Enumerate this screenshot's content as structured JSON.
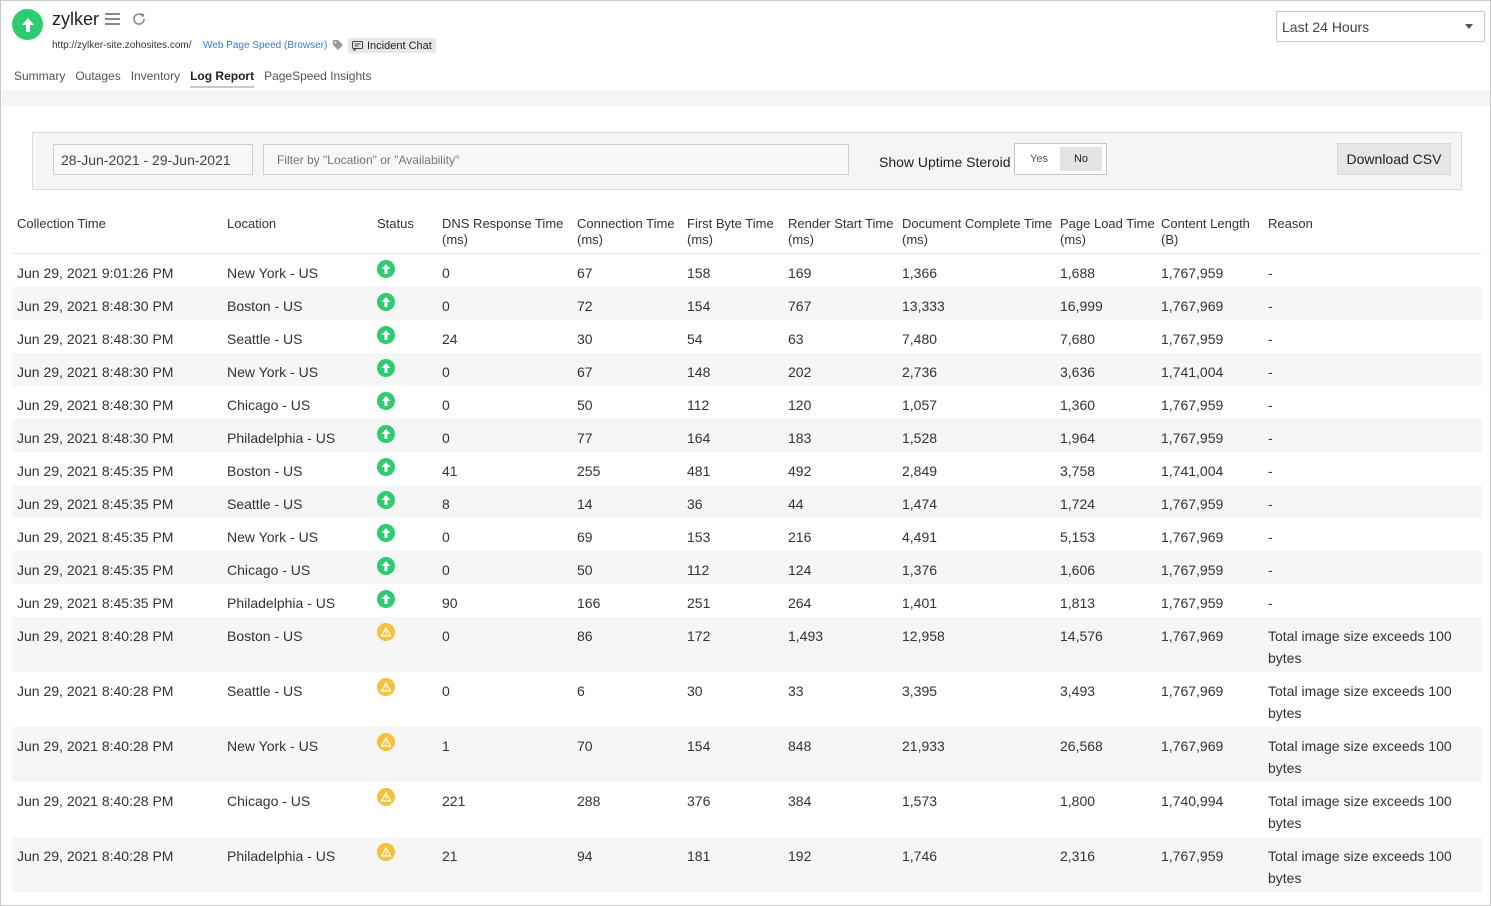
{
  "header": {
    "monitor_name": "zylker",
    "url": "http://zylker-site.zohosites.com/",
    "monitor_type": "Web Page Speed (Browser)",
    "incident_chat": "Incident Chat",
    "status_color": "#2ecc71",
    "period": "Last 24 Hours"
  },
  "tabs": [
    {
      "label": "Summary"
    },
    {
      "label": "Outages"
    },
    {
      "label": "Inventory"
    },
    {
      "label": "Log Report",
      "active": true
    },
    {
      "label": "PageSpeed Insights"
    }
  ],
  "filters": {
    "date_range": "28-Jun-2021 - 29-Jun-2021",
    "filter_placeholder": "Filter by \"Location\" or \"Availability\"",
    "steroid_label": "Show Uptime Steroid",
    "toggle_yes": "Yes",
    "toggle_no": "No",
    "toggle_selected": "No",
    "download_label": "Download CSV"
  },
  "table": {
    "columns": [
      {
        "line1": "Collection Time",
        "line2": ""
      },
      {
        "line1": "Location",
        "line2": ""
      },
      {
        "line1": "Status",
        "line2": ""
      },
      {
        "line1": "DNS Response Time",
        "line2": "(ms)"
      },
      {
        "line1": "Connection Time",
        "line2": "(ms)"
      },
      {
        "line1": "First Byte Time",
        "line2": "(ms)"
      },
      {
        "line1": "Render Start Time",
        "line2": "(ms)"
      },
      {
        "line1": "Document Complete Time",
        "line2": "(ms)"
      },
      {
        "line1": "Page Load Time",
        "line2": "(ms)"
      },
      {
        "line1": "Content Length",
        "line2": "(B)"
      },
      {
        "line1": "Reason",
        "line2": ""
      }
    ],
    "rows": [
      {
        "time": "Jun 29, 2021 9:01:26 PM",
        "location": "New York - US",
        "status": "up",
        "dns": "0",
        "conn": "67",
        "fbt": "158",
        "rst": "169",
        "dct": "1,366",
        "plt": "1,688",
        "len": "1,767,959",
        "reason": "-"
      },
      {
        "time": "Jun 29, 2021 8:48:30 PM",
        "location": "Boston - US",
        "status": "up",
        "dns": "0",
        "conn": "72",
        "fbt": "154",
        "rst": "767",
        "dct": "13,333",
        "plt": "16,999",
        "len": "1,767,969",
        "reason": "-"
      },
      {
        "time": "Jun 29, 2021 8:48:30 PM",
        "location": "Seattle - US",
        "status": "up",
        "dns": "24",
        "conn": "30",
        "fbt": "54",
        "rst": "63",
        "dct": "7,480",
        "plt": "7,680",
        "len": "1,767,959",
        "reason": "-"
      },
      {
        "time": "Jun 29, 2021 8:48:30 PM",
        "location": "New York - US",
        "status": "up",
        "dns": "0",
        "conn": "67",
        "fbt": "148",
        "rst": "202",
        "dct": "2,736",
        "plt": "3,636",
        "len": "1,741,004",
        "reason": "-"
      },
      {
        "time": "Jun 29, 2021 8:48:30 PM",
        "location": "Chicago - US",
        "status": "up",
        "dns": "0",
        "conn": "50",
        "fbt": "112",
        "rst": "120",
        "dct": "1,057",
        "plt": "1,360",
        "len": "1,767,959",
        "reason": "-"
      },
      {
        "time": "Jun 29, 2021 8:48:30 PM",
        "location": "Philadelphia - US",
        "status": "up",
        "dns": "0",
        "conn": "77",
        "fbt": "164",
        "rst": "183",
        "dct": "1,528",
        "plt": "1,964",
        "len": "1,767,959",
        "reason": "-"
      },
      {
        "time": "Jun 29, 2021 8:45:35 PM",
        "location": "Boston - US",
        "status": "up",
        "dns": "41",
        "conn": "255",
        "fbt": "481",
        "rst": "492",
        "dct": "2,849",
        "plt": "3,758",
        "len": "1,741,004",
        "reason": "-"
      },
      {
        "time": "Jun 29, 2021 8:45:35 PM",
        "location": "Seattle - US",
        "status": "up",
        "dns": "8",
        "conn": "14",
        "fbt": "36",
        "rst": "44",
        "dct": "1,474",
        "plt": "1,724",
        "len": "1,767,959",
        "reason": "-"
      },
      {
        "time": "Jun 29, 2021 8:45:35 PM",
        "location": "New York - US",
        "status": "up",
        "dns": "0",
        "conn": "69",
        "fbt": "153",
        "rst": "216",
        "dct": "4,491",
        "plt": "5,153",
        "len": "1,767,969",
        "reason": "-"
      },
      {
        "time": "Jun 29, 2021 8:45:35 PM",
        "location": "Chicago - US",
        "status": "up",
        "dns": "0",
        "conn": "50",
        "fbt": "112",
        "rst": "124",
        "dct": "1,376",
        "plt": "1,606",
        "len": "1,767,959",
        "reason": "-"
      },
      {
        "time": "Jun 29, 2021 8:45:35 PM",
        "location": "Philadelphia - US",
        "status": "up",
        "dns": "90",
        "conn": "166",
        "fbt": "251",
        "rst": "264",
        "dct": "1,401",
        "plt": "1,813",
        "len": "1,767,959",
        "reason": "-"
      },
      {
        "time": "Jun 29, 2021 8:40:28 PM",
        "location": "Boston - US",
        "status": "warn",
        "dns": "0",
        "conn": "86",
        "fbt": "172",
        "rst": "1,493",
        "dct": "12,958",
        "plt": "14,576",
        "len": "1,767,969",
        "reason": "Total image size exceeds 100 bytes"
      },
      {
        "time": "Jun 29, 2021 8:40:28 PM",
        "location": "Seattle - US",
        "status": "warn",
        "dns": "0",
        "conn": "6",
        "fbt": "30",
        "rst": "33",
        "dct": "3,395",
        "plt": "3,493",
        "len": "1,767,969",
        "reason": "Total image size exceeds 100 bytes"
      },
      {
        "time": "Jun 29, 2021 8:40:28 PM",
        "location": "New York - US",
        "status": "warn",
        "dns": "1",
        "conn": "70",
        "fbt": "154",
        "rst": "848",
        "dct": "21,933",
        "plt": "26,568",
        "len": "1,767,969",
        "reason": "Total image size exceeds 100 bytes"
      },
      {
        "time": "Jun 29, 2021 8:40:28 PM",
        "location": "Chicago - US",
        "status": "warn",
        "dns": "221",
        "conn": "288",
        "fbt": "376",
        "rst": "384",
        "dct": "1,573",
        "plt": "1,800",
        "len": "1,740,994",
        "reason": "Total image size exceeds 100 bytes"
      },
      {
        "time": "Jun 29, 2021 8:40:28 PM",
        "location": "Philadelphia - US",
        "status": "warn",
        "dns": "21",
        "conn": "94",
        "fbt": "181",
        "rst": "192",
        "dct": "1,746",
        "plt": "2,316",
        "len": "1,767,959",
        "reason": "Total image size exceeds 100 bytes"
      }
    ]
  },
  "icons": {
    "status_up": "arrow-up-circle-icon",
    "status_warn": "warning-triangle-icon",
    "status_up_color": "#2ecc71",
    "status_warn_color": "#f5c13a"
  }
}
